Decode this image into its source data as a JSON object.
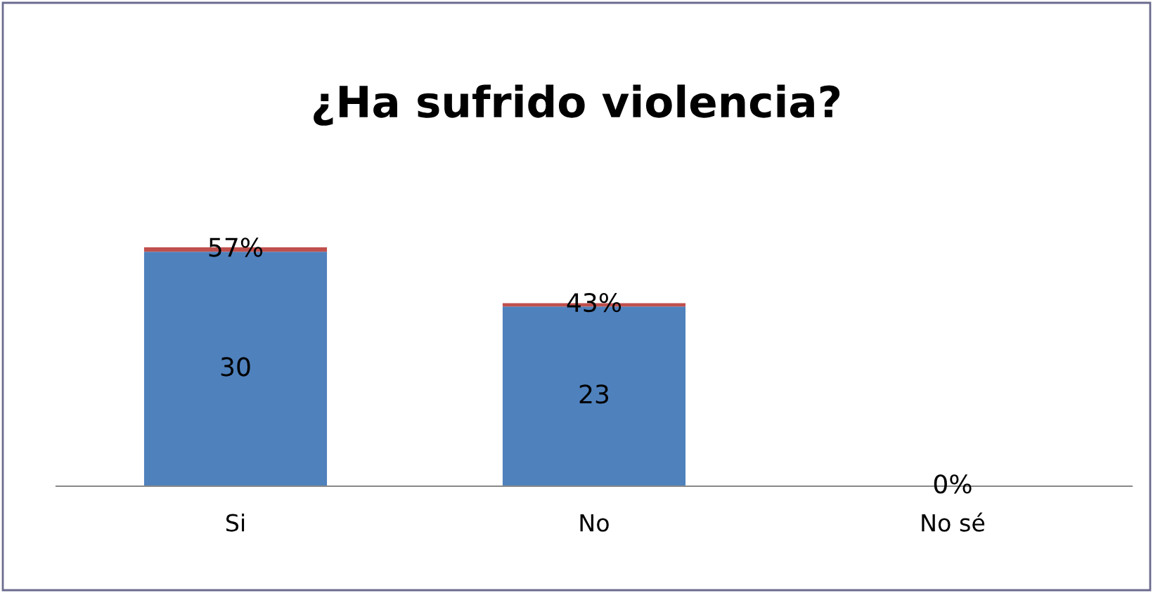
{
  "chart_data": {
    "type": "bar",
    "title": "¿Ha sufrido violencia?",
    "categories": [
      "Si",
      "No",
      "No sé"
    ],
    "stacked": true,
    "series": [
      {
        "color": "#4f81bd",
        "values": [
          30,
          23,
          0
        ],
        "value_labels": [
          "30",
          "23",
          null
        ]
      },
      {
        "color": "#c0504d",
        "values": [
          0.57,
          0.43,
          0
        ],
        "value_labels": [
          "57%",
          "43%",
          "0%"
        ]
      }
    ],
    "legend": false,
    "grid": false
  }
}
